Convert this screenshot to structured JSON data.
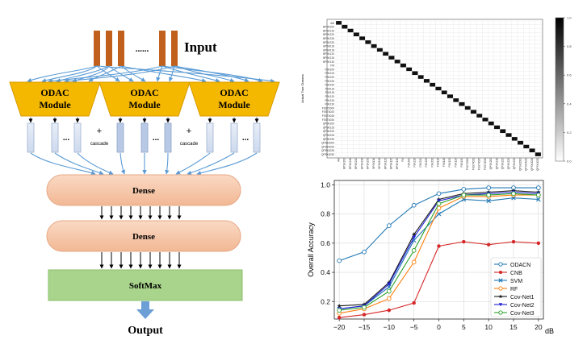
{
  "architecture": {
    "input_label": "Input",
    "ellipsis": "......",
    "module_label_line1": "ODAC",
    "module_label_line2": "Module",
    "vector_dots": "...",
    "plus": "+",
    "cascade": "cascade",
    "dense1": "Dense",
    "dense2": "Dense",
    "softmax": "SoftMax",
    "output_label": "Output",
    "colors": {
      "input_bar": "#c0601c",
      "module": "#f5b800",
      "dense": "#f6c6a8",
      "softmax": "#a8d48c",
      "arrow_blue": "#5b9bd5"
    }
  },
  "confusion_matrix": {
    "y_title": "Actual True Classes",
    "classes": [
      "AM",
      "BPSK200",
      "BPSK216",
      "BPSK220",
      "BPSK226",
      "BPSK230",
      "BPSK116",
      "BPSK118",
      "BPSK120",
      "BPSK126",
      "BPSK130",
      "FM",
      "FSK200",
      "FSK216",
      "FSK220",
      "FSK226",
      "FSK230",
      "FSK116",
      "FSK118",
      "FSK120",
      "FSK126",
      "FSK130",
      "FSST2000",
      "FSST4020",
      "FSST4026",
      "FSST4030",
      "QPSK200",
      "QPSK216",
      "QPSK220",
      "QPSK226",
      "QPSK230",
      "QPSK2000",
      "QPSK4020",
      "QPSK4026",
      "QPSK4030"
    ],
    "colorbar_ticks": [
      "1.0",
      "0.8",
      "0.6",
      "0.4",
      "0.2",
      "0.0"
    ]
  },
  "chart_data": {
    "type": "line",
    "xlabel": "dB",
    "ylabel": "Overall Accuracy",
    "x": [
      -20,
      -15,
      -10,
      -5,
      0,
      5,
      10,
      15,
      20
    ],
    "xlim": [
      -21,
      21
    ],
    "ylim": [
      0.08,
      1.03
    ],
    "x_ticks": [
      "−20",
      "−15",
      "−10",
      "−5",
      "0",
      "5",
      "10",
      "15",
      "20"
    ],
    "y_ticks": [
      "0.2",
      "0.4",
      "0.6",
      "0.8",
      "1.0"
    ],
    "grid": true,
    "legend_position": "bottom-right",
    "series": [
      {
        "name": "ODACN",
        "color": "#1f77b4",
        "marker": "circle-open",
        "values": [
          0.48,
          0.54,
          0.72,
          0.86,
          0.94,
          0.97,
          0.98,
          0.98,
          0.98
        ]
      },
      {
        "name": "CNB",
        "color": "#d62728",
        "marker": "circle-filled",
        "values": [
          0.09,
          0.11,
          0.14,
          0.19,
          0.58,
          0.61,
          0.59,
          0.61,
          0.6
        ]
      },
      {
        "name": "SVM",
        "color": "#1f77b4",
        "marker": "x",
        "values": [
          0.15,
          0.17,
          0.3,
          0.62,
          0.8,
          0.9,
          0.89,
          0.91,
          0.9
        ]
      },
      {
        "name": "RF",
        "color": "#ff7f0e",
        "marker": "circle-open",
        "values": [
          0.12,
          0.15,
          0.22,
          0.47,
          0.84,
          0.92,
          0.92,
          0.93,
          0.93
        ]
      },
      {
        "name": "Cov-Net1",
        "color": "#1a1a1a",
        "marker": "star",
        "values": [
          0.17,
          0.18,
          0.33,
          0.66,
          0.9,
          0.94,
          0.95,
          0.96,
          0.95
        ]
      },
      {
        "name": "Cov-Net2",
        "color": "#1f1fd6",
        "marker": "triangle-down",
        "values": [
          0.15,
          0.17,
          0.32,
          0.64,
          0.89,
          0.93,
          0.94,
          0.95,
          0.94
        ]
      },
      {
        "name": "Cov-Net3",
        "color": "#2ca02c",
        "marker": "circle-open",
        "values": [
          0.14,
          0.16,
          0.27,
          0.55,
          0.87,
          0.93,
          0.93,
          0.94,
          0.93
        ]
      }
    ]
  }
}
